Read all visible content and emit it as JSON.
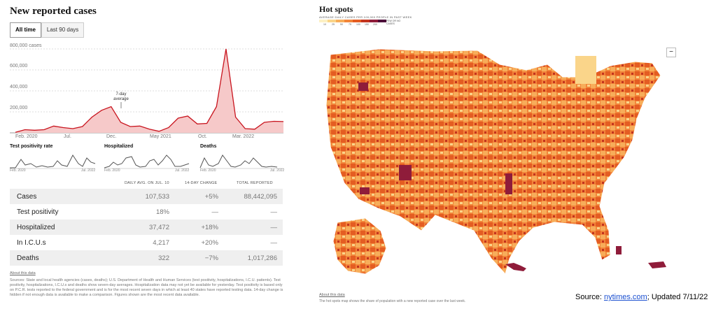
{
  "left": {
    "title": "New reported cases",
    "tabs": [
      "All time",
      "Last 90 days"
    ],
    "y_ticks": [
      "800,000 cases",
      "600,000",
      "400,000",
      "200,000"
    ],
    "x_ticks": [
      "Feb. 2020",
      "Jul.",
      "Dec.",
      "May 2021",
      "Oct.",
      "Mar. 2022"
    ],
    "annotation": [
      "7-day",
      "average"
    ],
    "mini": [
      {
        "title": "Test positivity rate",
        "start": "Feb. 2020",
        "end": "Jul. 2022"
      },
      {
        "title": "Hospitalized",
        "start": "Feb. 2020",
        "end": "Jul. 2022"
      },
      {
        "title": "Deaths",
        "start": "Feb. 2020",
        "end": "Jul. 2022"
      }
    ],
    "table_headers": {
      "avg": "DAILY AVG. ON JUL. 10",
      "change": "14-DAY CHANGE",
      "total": "TOTAL REPORTED"
    },
    "rows": [
      {
        "name": "Cases",
        "avg": "107,533",
        "change": "+5%",
        "total": "88,442,095"
      },
      {
        "name": "Test positivity",
        "avg": "18%",
        "change": "—",
        "total": "—"
      },
      {
        "name": "Hospitalized",
        "avg": "37,472",
        "change": "+18%",
        "total": "—"
      },
      {
        "name": "In I.C.U.s",
        "avg": "4,217",
        "change": "+20%",
        "total": "—"
      },
      {
        "name": "Deaths",
        "avg": "322",
        "change": "−7%",
        "total": "1,017,286"
      }
    ],
    "about": "About this data",
    "notes": "Sources: State and local health agencies (cases, deaths); U.S. Department of Health and Human Services (test positivity, hospitalizations, I.C.U. patients). Test positivity, hospitalizations, I.C.U.s and deaths show seven-day averages. Hospitalization data may not yet be available for yesterday. Test positivity is based only on P.C.R. tests reported to the federal government and is for the most recent seven days in which at least 40 states have reported testing data. 14-day change is hidden if not enough data is available to make a comparison. Figures shown are the most recent data available.",
    "chart_color": "#c8141e"
  },
  "chart_data": {
    "type": "area",
    "title": "New reported cases",
    "ylim": [
      0,
      800000
    ],
    "x": [
      "2020-03",
      "2020-04",
      "2020-05",
      "2020-06",
      "2020-07",
      "2020-08",
      "2020-09",
      "2020-10",
      "2020-11",
      "2020-12",
      "2021-01",
      "2021-02",
      "2021-03",
      "2021-04",
      "2021-05",
      "2021-06",
      "2021-07",
      "2021-08",
      "2021-09",
      "2021-10",
      "2021-11",
      "2021-12",
      "2022-01",
      "2022-02",
      "2022-03",
      "2022-04",
      "2022-05",
      "2022-06",
      "2022-07"
    ],
    "series": [
      {
        "values": [
          5000,
          30000,
          25000,
          30000,
          65000,
          50000,
          40000,
          60000,
          150000,
          215000,
          250000,
          100000,
          60000,
          65000,
          35000,
          15000,
          50000,
          140000,
          160000,
          85000,
          90000,
          250000,
          800000,
          150000,
          40000,
          35000,
          100000,
          110000,
          107533
        ]
      }
    ]
  },
  "right": {
    "title": "Hot spots",
    "legend_caption": "AVERAGE DAILY CASES PER 100,000 PEOPLE IN PAST WEEK",
    "legend_colors": [
      "#fdf1c4",
      "#fad58a",
      "#f7ad5a",
      "#f2853a",
      "#e45d22",
      "#c3341e",
      "#8f1c3a",
      "#4d0f3a"
    ],
    "legend_ticks": [
      "10",
      "25",
      "50",
      "75",
      "100",
      "150",
      "200"
    ],
    "legend_extra": "FEW OR NO CASES",
    "zoom_label": "−",
    "about": "About this data",
    "note": "The hot spots map shows the share of population with a new reported case over the last week.",
    "source_prefix": "Source: ",
    "source_link": "nytimes.com",
    "source_suffix": "; Updated 7/11/22"
  }
}
